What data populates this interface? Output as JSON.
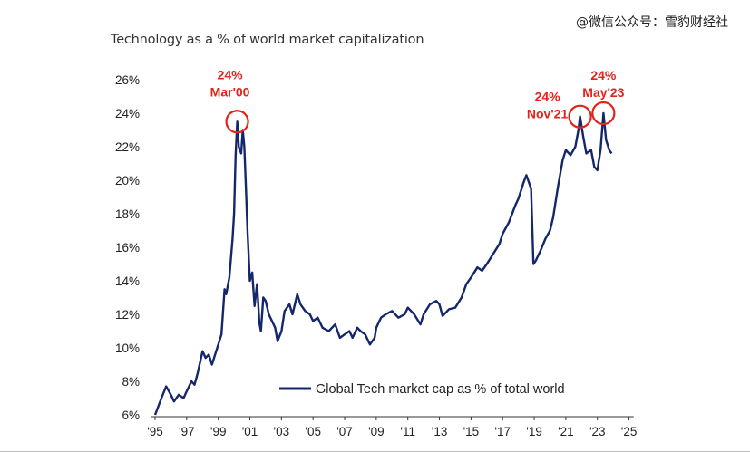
{
  "watermark": "@微信公众号：雪豹财经社",
  "chart_data": {
    "type": "line",
    "title": "Technology as a % of world market capitalization",
    "xlabel": "",
    "ylabel": "",
    "ylim": [
      6,
      26
    ],
    "xlim": [
      1995,
      2026
    ],
    "grid": false,
    "legend_position": "bottom-center",
    "y_ticks": [
      6,
      8,
      10,
      12,
      14,
      16,
      18,
      20,
      22,
      24,
      26
    ],
    "y_tick_labels": [
      "6%",
      "8%",
      "10%",
      "12%",
      "14%",
      "16%",
      "18%",
      "20%",
      "22%",
      "24%",
      "26%"
    ],
    "x_ticks": [
      1995,
      1997,
      1999,
      2001,
      2003,
      2005,
      2007,
      2009,
      2011,
      2013,
      2015,
      2017,
      2019,
      2021,
      2023,
      2025
    ],
    "x_tick_labels": [
      "'95",
      "'97",
      "'99",
      "'01",
      "'03",
      "'05",
      "'07",
      "'09",
      "'11",
      "'13",
      "'15",
      "'17",
      "'19",
      "'21",
      "'23",
      "'25"
    ],
    "series": [
      {
        "name": "Global Tech market cap as % of total world",
        "color": "#14276a",
        "points": [
          [
            1995.0,
            6.0
          ],
          [
            1995.4,
            7.0
          ],
          [
            1995.7,
            7.7
          ],
          [
            1996.0,
            7.2
          ],
          [
            1996.2,
            6.8
          ],
          [
            1996.5,
            7.2
          ],
          [
            1996.8,
            7.0
          ],
          [
            1997.0,
            7.4
          ],
          [
            1997.3,
            8.0
          ],
          [
            1997.5,
            7.8
          ],
          [
            1997.7,
            8.5
          ],
          [
            1998.0,
            9.8
          ],
          [
            1998.2,
            9.4
          ],
          [
            1998.4,
            9.6
          ],
          [
            1998.6,
            9.0
          ],
          [
            1998.8,
            9.6
          ],
          [
            1999.0,
            10.2
          ],
          [
            1999.2,
            10.8
          ],
          [
            1999.4,
            13.5
          ],
          [
            1999.5,
            13.2
          ],
          [
            1999.7,
            14.2
          ],
          [
            1999.9,
            16.5
          ],
          [
            2000.0,
            18.0
          ],
          [
            2000.1,
            21.5
          ],
          [
            2000.2,
            23.5
          ],
          [
            2000.3,
            22.0
          ],
          [
            2000.45,
            21.6
          ],
          [
            2000.55,
            23.0
          ],
          [
            2000.65,
            22.0
          ],
          [
            2000.75,
            19.5
          ],
          [
            2000.85,
            17.0
          ],
          [
            2001.0,
            14.0
          ],
          [
            2001.15,
            14.5
          ],
          [
            2001.3,
            12.5
          ],
          [
            2001.45,
            13.8
          ],
          [
            2001.6,
            11.5
          ],
          [
            2001.7,
            11.0
          ],
          [
            2001.85,
            13.0
          ],
          [
            2002.0,
            12.8
          ],
          [
            2002.2,
            12.0
          ],
          [
            2002.4,
            11.6
          ],
          [
            2002.6,
            11.2
          ],
          [
            2002.75,
            10.4
          ],
          [
            2003.0,
            11.0
          ],
          [
            2003.2,
            12.2
          ],
          [
            2003.5,
            12.6
          ],
          [
            2003.7,
            12.0
          ],
          [
            2004.0,
            13.2
          ],
          [
            2004.2,
            12.6
          ],
          [
            2004.5,
            12.2
          ],
          [
            2004.8,
            12.0
          ],
          [
            2005.0,
            11.6
          ],
          [
            2005.3,
            11.8
          ],
          [
            2005.6,
            11.2
          ],
          [
            2006.0,
            11.0
          ],
          [
            2006.4,
            11.4
          ],
          [
            2006.7,
            10.6
          ],
          [
            2007.0,
            10.8
          ],
          [
            2007.3,
            11.0
          ],
          [
            2007.5,
            10.6
          ],
          [
            2007.8,
            11.2
          ],
          [
            2008.0,
            11.0
          ],
          [
            2008.3,
            10.8
          ],
          [
            2008.6,
            10.2
          ],
          [
            2008.9,
            10.6
          ],
          [
            2009.0,
            11.2
          ],
          [
            2009.3,
            11.8
          ],
          [
            2009.6,
            12.0
          ],
          [
            2010.0,
            12.2
          ],
          [
            2010.4,
            11.8
          ],
          [
            2010.8,
            12.0
          ],
          [
            2011.0,
            12.4
          ],
          [
            2011.4,
            12.0
          ],
          [
            2011.8,
            11.4
          ],
          [
            2012.0,
            12.0
          ],
          [
            2012.4,
            12.6
          ],
          [
            2012.8,
            12.8
          ],
          [
            2013.0,
            12.6
          ],
          [
            2013.2,
            11.9
          ],
          [
            2013.6,
            12.3
          ],
          [
            2014.0,
            12.4
          ],
          [
            2014.4,
            13.0
          ],
          [
            2014.7,
            13.8
          ],
          [
            2015.0,
            14.2
          ],
          [
            2015.4,
            14.8
          ],
          [
            2015.7,
            14.6
          ],
          [
            2016.0,
            15.0
          ],
          [
            2016.4,
            15.6
          ],
          [
            2016.8,
            16.2
          ],
          [
            2017.0,
            16.8
          ],
          [
            2017.4,
            17.5
          ],
          [
            2017.8,
            18.5
          ],
          [
            2018.0,
            18.9
          ],
          [
            2018.3,
            19.8
          ],
          [
            2018.5,
            20.3
          ],
          [
            2018.8,
            19.5
          ],
          [
            2018.95,
            15.0
          ],
          [
            2019.1,
            15.2
          ],
          [
            2019.4,
            15.8
          ],
          [
            2019.7,
            16.5
          ],
          [
            2020.0,
            17.0
          ],
          [
            2020.2,
            17.8
          ],
          [
            2020.5,
            19.6
          ],
          [
            2020.8,
            21.2
          ],
          [
            2021.0,
            21.8
          ],
          [
            2021.3,
            21.5
          ],
          [
            2021.6,
            22.0
          ],
          [
            2021.8,
            23.0
          ],
          [
            2021.9,
            23.8
          ],
          [
            2022.1,
            22.6
          ],
          [
            2022.3,
            21.6
          ],
          [
            2022.6,
            21.8
          ],
          [
            2022.8,
            20.8
          ],
          [
            2023.0,
            20.6
          ],
          [
            2023.2,
            21.8
          ],
          [
            2023.38,
            24.0
          ],
          [
            2023.55,
            22.4
          ],
          [
            2023.75,
            21.8
          ],
          [
            2023.9,
            21.6
          ]
        ]
      }
    ],
    "annotations": [
      {
        "text": "24%",
        "text2": "Mar'00",
        "x": 2000.2,
        "y": 23.5
      },
      {
        "text": "24%",
        "text2": "Nov'21",
        "x": 2021.9,
        "y": 23.8
      },
      {
        "text": "24%",
        "text2": "May'23",
        "x": 2023.38,
        "y": 24.0
      }
    ]
  }
}
